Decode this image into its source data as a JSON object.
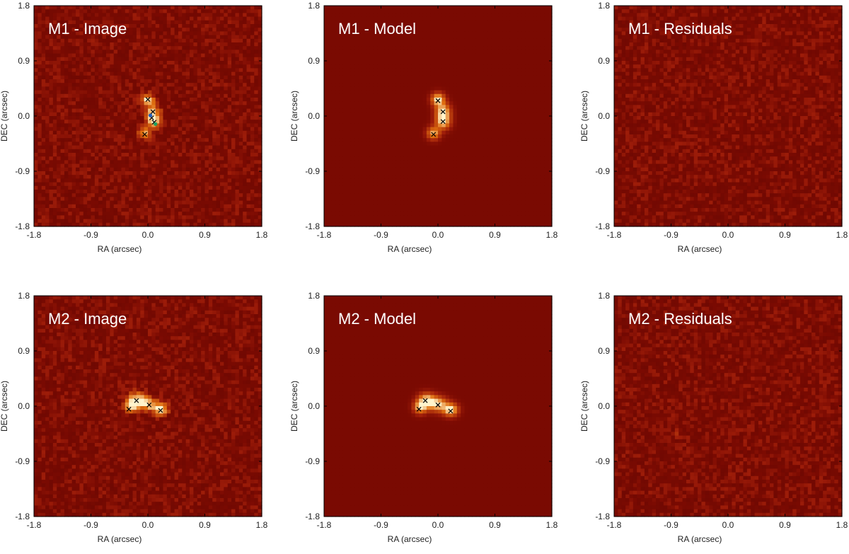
{
  "colors": {
    "background": "#7a0a02",
    "noise_dark": "#3a0400",
    "noise_light": "#a01e0a",
    "source_mid": "#e07010",
    "source_peak": "#fff4cc",
    "marker": "#000000",
    "marker_blue": "#1f5fbf",
    "marker_green": "#1f9f5f"
  },
  "chart_data": [
    {
      "type": "heatmap",
      "title": "M1 - Image",
      "xlabel": "RA (arcsec)",
      "ylabel": "DEC (arcsec)",
      "xlim": [
        -1.8,
        1.8
      ],
      "ylim": [
        -1.8,
        1.8
      ],
      "xticks": [
        "-1.8",
        "-0.9",
        "0.0",
        "0.9",
        "1.8"
      ],
      "yticks": [
        "1.8",
        "0.9",
        "0.0",
        "-0.9",
        "-1.8"
      ],
      "noise": true,
      "blobs": [
        {
          "x": 0.0,
          "y": 0.27,
          "sx": 0.07,
          "sy": 0.06,
          "amp": 1.0
        },
        {
          "x": 0.08,
          "y": 0.05,
          "sx": 0.08,
          "sy": 0.09,
          "amp": 0.9
        },
        {
          "x": 0.1,
          "y": -0.1,
          "sx": 0.08,
          "sy": 0.07,
          "amp": 0.75
        },
        {
          "x": -0.05,
          "y": -0.27,
          "sx": 0.08,
          "sy": 0.07,
          "amp": 0.7
        }
      ],
      "markers": [
        {
          "x": 0.0,
          "y": 0.27,
          "symbol": "x"
        },
        {
          "x": 0.08,
          "y": 0.07,
          "symbol": "x"
        },
        {
          "x": 0.06,
          "y": -0.03,
          "symbol": "x"
        },
        {
          "x": 0.1,
          "y": -0.1,
          "symbol": "x"
        },
        {
          "x": -0.05,
          "y": -0.3,
          "symbol": "x"
        },
        {
          "x": 0.04,
          "y": 0.01,
          "symbol": "dot-blue"
        },
        {
          "x": 0.12,
          "y": -0.13,
          "symbol": "dot-green"
        }
      ]
    },
    {
      "type": "heatmap",
      "title": "M1 - Model",
      "xlabel": "RA (arcsec)",
      "ylabel": "DEC (arcsec)",
      "xlim": [
        -1.8,
        1.8
      ],
      "ylim": [
        -1.8,
        1.8
      ],
      "xticks": [
        "-1.8",
        "-0.9",
        "0.0",
        "0.9",
        "1.8"
      ],
      "yticks": [
        "1.8",
        "0.9",
        "0.0",
        "-0.9",
        "-1.8"
      ],
      "noise": false,
      "blobs": [
        {
          "x": 0.0,
          "y": 0.27,
          "sx": 0.07,
          "sy": 0.07,
          "amp": 1.0
        },
        {
          "x": 0.08,
          "y": 0.07,
          "sx": 0.08,
          "sy": 0.09,
          "amp": 0.95
        },
        {
          "x": 0.08,
          "y": -0.1,
          "sx": 0.08,
          "sy": 0.08,
          "amp": 0.85
        },
        {
          "x": -0.07,
          "y": -0.28,
          "sx": 0.07,
          "sy": 0.07,
          "amp": 0.8
        }
      ],
      "markers": [
        {
          "x": 0.0,
          "y": 0.25,
          "symbol": "x"
        },
        {
          "x": 0.08,
          "y": 0.07,
          "symbol": "x"
        },
        {
          "x": 0.08,
          "y": -0.09,
          "symbol": "x"
        },
        {
          "x": -0.07,
          "y": -0.3,
          "symbol": "x"
        }
      ]
    },
    {
      "type": "heatmap",
      "title": "M1 - Residuals",
      "xlabel": "RA (arcsec)",
      "ylabel": "DEC (arcsec)",
      "xlim": [
        -1.8,
        1.8
      ],
      "ylim": [
        -1.8,
        1.8
      ],
      "xticks": [
        "-1.8",
        "-0.9",
        "0.0",
        "0.9",
        "1.8"
      ],
      "yticks": [
        "1.8",
        "0.9",
        "0.0",
        "-0.9",
        "-1.8"
      ],
      "noise": true,
      "blobs": [],
      "markers": []
    },
    {
      "type": "heatmap",
      "title": "M2 - Image",
      "xlabel": "RA (arcsec)",
      "ylabel": "DEC (arcsec)",
      "xlim": [
        -1.8,
        1.8
      ],
      "ylim": [
        -1.8,
        1.8
      ],
      "xticks": [
        "-1.8",
        "-0.9",
        "0.0",
        "0.9",
        "1.8"
      ],
      "yticks": [
        "1.8",
        "0.9",
        "0.0",
        "-0.9",
        "-1.8"
      ],
      "noise": true,
      "blobs": [
        {
          "x": -0.27,
          "y": 0.0,
          "sx": 0.07,
          "sy": 0.07,
          "amp": 0.85
        },
        {
          "x": -0.17,
          "y": 0.1,
          "sx": 0.1,
          "sy": 0.09,
          "amp": 0.9
        },
        {
          "x": 0.0,
          "y": 0.03,
          "sx": 0.1,
          "sy": 0.07,
          "amp": 0.8
        },
        {
          "x": 0.2,
          "y": -0.05,
          "sx": 0.08,
          "sy": 0.07,
          "amp": 1.0
        }
      ],
      "markers": [
        {
          "x": -0.3,
          "y": -0.05,
          "symbol": "x"
        },
        {
          "x": -0.18,
          "y": 0.09,
          "symbol": "x"
        },
        {
          "x": 0.02,
          "y": 0.02,
          "symbol": "x"
        },
        {
          "x": 0.2,
          "y": -0.07,
          "symbol": "x"
        }
      ]
    },
    {
      "type": "heatmap",
      "title": "M2 - Model",
      "xlabel": "RA (arcsec)",
      "ylabel": "DEC (arcsec)",
      "xlim": [
        -1.8,
        1.8
      ],
      "ylim": [
        -1.8,
        1.8
      ],
      "xticks": [
        "-1.8",
        "-0.9",
        "0.0",
        "0.9",
        "1.8"
      ],
      "yticks": [
        "1.8",
        "0.9",
        "0.0",
        "-0.9",
        "-1.8"
      ],
      "noise": false,
      "blobs": [
        {
          "x": -0.28,
          "y": -0.02,
          "sx": 0.07,
          "sy": 0.07,
          "amp": 0.85
        },
        {
          "x": -0.18,
          "y": 0.09,
          "sx": 0.09,
          "sy": 0.08,
          "amp": 0.95
        },
        {
          "x": 0.0,
          "y": 0.03,
          "sx": 0.1,
          "sy": 0.08,
          "amp": 0.9
        },
        {
          "x": 0.2,
          "y": -0.06,
          "sx": 0.08,
          "sy": 0.07,
          "amp": 1.0
        }
      ],
      "markers": [
        {
          "x": -0.3,
          "y": -0.05,
          "symbol": "x"
        },
        {
          "x": -0.2,
          "y": 0.09,
          "symbol": "x"
        },
        {
          "x": 0.0,
          "y": 0.02,
          "symbol": "x"
        },
        {
          "x": 0.2,
          "y": -0.08,
          "symbol": "x"
        }
      ]
    },
    {
      "type": "heatmap",
      "title": "M2 - Residuals",
      "xlabel": "RA (arcsec)",
      "ylabel": "DEC (arcsec)",
      "xlim": [
        -1.8,
        1.8
      ],
      "ylim": [
        -1.8,
        1.8
      ],
      "xticks": [
        "-1.8",
        "-0.9",
        "0.0",
        "0.9",
        "1.8"
      ],
      "yticks": [
        "1.8",
        "0.9",
        "0.0",
        "-0.9",
        "-1.8"
      ],
      "noise": true,
      "blobs": [
        {
          "x": -0.82,
          "y": -0.45,
          "sx": 0.03,
          "sy": 0.03,
          "amp": 0.35
        }
      ],
      "markers": []
    }
  ]
}
